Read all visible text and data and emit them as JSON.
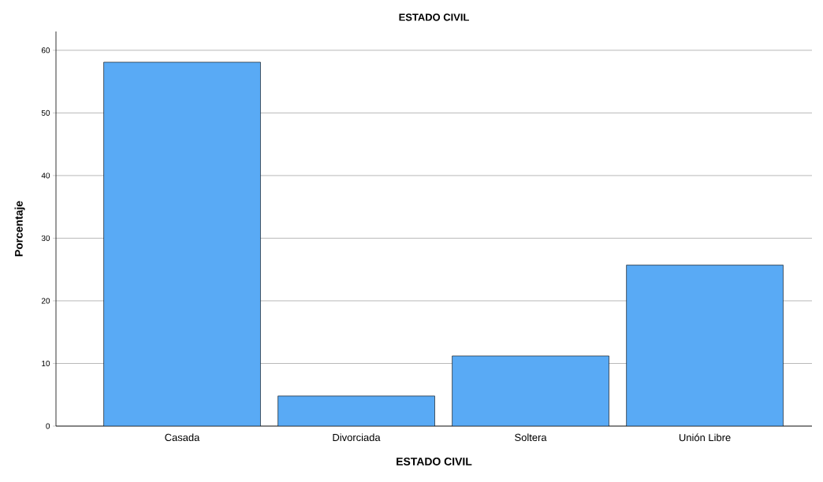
{
  "chart_data": {
    "type": "bar",
    "title": "ESTADO CIVIL",
    "xlabel": "ESTADO CIVIL",
    "ylabel": "Porcentaje",
    "categories": [
      "Casada",
      "Divorciada",
      "Soltera",
      "Unión Libre"
    ],
    "values": [
      58.1,
      4.8,
      11.2,
      25.7
    ],
    "color": "#59aaf5",
    "ylim": [
      0,
      63
    ],
    "yticks": [
      0,
      10,
      20,
      30,
      40,
      50,
      60
    ],
    "grid": "y"
  }
}
